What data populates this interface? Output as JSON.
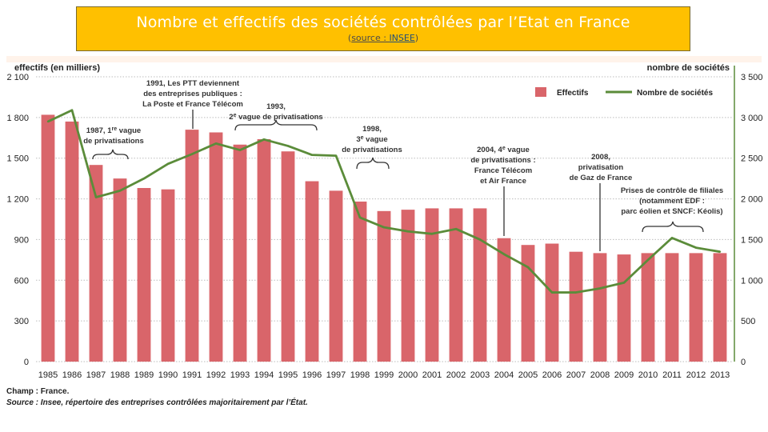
{
  "header": {
    "title": "Nombre et effectifs des sociétés contrôlées par l’Etat en France",
    "source_prefix": "(",
    "source_label": "source : ",
    "source_link": "INSEE",
    "source_suffix": ")"
  },
  "chart_data": {
    "type": "bar",
    "left_axis_label": "effectifs (en milliers)",
    "right_axis_label": "nombre de sociétés",
    "categories": [
      "1985",
      "1986",
      "1987",
      "1988",
      "1989",
      "1990",
      "1991",
      "1992",
      "1993",
      "1994",
      "1995",
      "1996",
      "1997",
      "1998",
      "1999",
      "2000",
      "2001",
      "2002",
      "2003",
      "2004",
      "2005",
      "2006",
      "2007",
      "2008",
      "2009",
      "2010",
      "2011",
      "2012",
      "2013"
    ],
    "series": [
      {
        "name": "Effectifs",
        "type": "bar",
        "axis": "left",
        "color": "#d9656a",
        "values": [
          1820,
          1770,
          1450,
          1350,
          1280,
          1270,
          1710,
          1690,
          1600,
          1640,
          1550,
          1330,
          1260,
          1180,
          1110,
          1120,
          1130,
          1130,
          1130,
          910,
          860,
          870,
          810,
          800,
          790,
          800,
          800,
          800,
          800
        ]
      },
      {
        "name": "Nombre de sociétés",
        "type": "line",
        "axis": "right",
        "color": "#5b8c3a",
        "values": [
          2950,
          3090,
          2020,
          2100,
          2250,
          2430,
          2550,
          2680,
          2600,
          2730,
          2650,
          2540,
          2530,
          1770,
          1650,
          1600,
          1570,
          1630,
          1500,
          1320,
          1160,
          850,
          850,
          900,
          970,
          1250,
          1520,
          1400,
          1350
        ]
      }
    ],
    "left_ticks": [
      "0",
      "300",
      "600",
      "900",
      "1 200",
      "1 500",
      "1 800",
      "2 100"
    ],
    "left_range": [
      0,
      2100
    ],
    "right_ticks": [
      "0",
      "500",
      "1 000",
      "1 500",
      "2 000",
      "2 500",
      "3 000",
      "3 500"
    ],
    "right_range": [
      0,
      3500
    ],
    "annotations": {
      "a1987": [
        "1987, 1",
        "re",
        " vague",
        "de privatisations"
      ],
      "a1991": [
        "1991, Les PTT deviennent",
        "des entreprises publiques :",
        "La Poste et France Télécom"
      ],
      "a1993": [
        "1993,",
        "2",
        "e",
        " vague de privatisations"
      ],
      "a1998": [
        "1998,",
        "3",
        "e",
        " vague",
        "de privatisations"
      ],
      "a2004": [
        "2004, 4",
        "e",
        " vague",
        "de privatisations :",
        "France Télécom",
        "et Air France"
      ],
      "a2008": [
        "2008,",
        "privatisation",
        "de Gaz de France"
      ],
      "a2010": [
        "Prises de contrôle de filiales",
        "(notamment EDF :",
        "parc éolien et SNCF: Kéolis)"
      ]
    },
    "legend": {
      "effectifs": "Effectifs",
      "societes": "Nombre de sociétés",
      "placement": "top-right"
    }
  },
  "footer": {
    "champ": "Champ : France.",
    "source": "Source : Insee, répertoire des entreprises contrôlées majoritairement par l’État."
  }
}
